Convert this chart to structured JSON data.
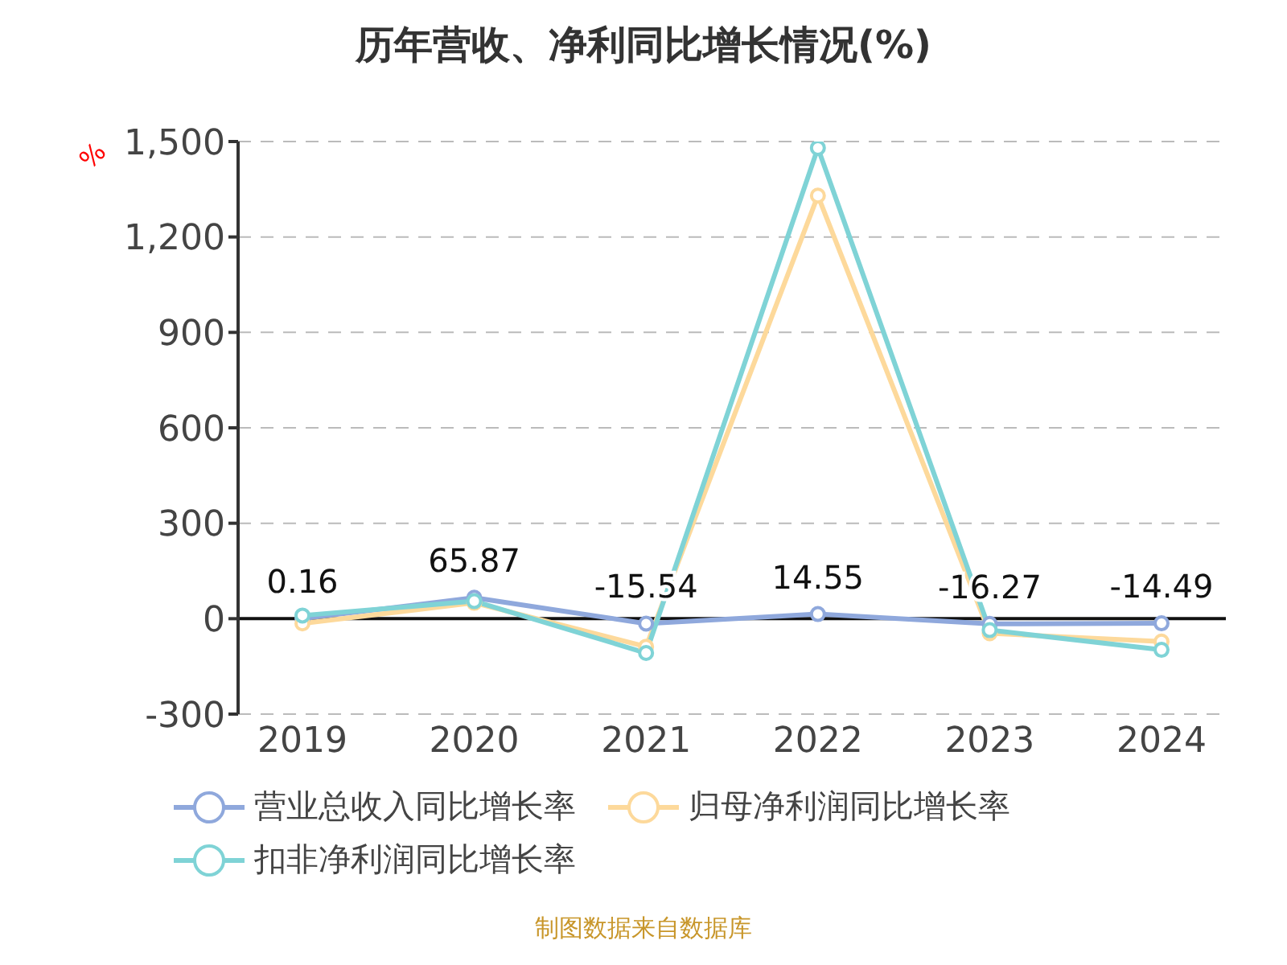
{
  "chart_data": {
    "type": "line",
    "title": "历年营收、净利同比增长情况(%)",
    "ylabel": "%",
    "categories": [
      "2019",
      "2020",
      "2021",
      "2022",
      "2023",
      "2024"
    ],
    "series": [
      {
        "name": "营业总收入同比增长率",
        "color": "#8fa8dc",
        "values": [
          0.16,
          65.87,
          -15.54,
          14.55,
          -16.27,
          -14.49
        ],
        "value_labels": [
          "0.16",
          "65.87",
          "-15.54",
          "14.55",
          "-16.27",
          "-14.49"
        ]
      },
      {
        "name": "归母净利润同比增长率",
        "color": "#fdd99b",
        "values": [
          -15,
          50,
          -88,
          1330,
          -46,
          -72
        ]
      },
      {
        "name": "扣非净利润同比增长率",
        "color": "#7fd3d6",
        "values": [
          10,
          55,
          -108,
          1480,
          -36,
          -98
        ]
      }
    ],
    "ylim": [
      -300,
      1500
    ],
    "yticks": [
      -300,
      0,
      300,
      600,
      900,
      {
        "value": 1200,
        "label": "1,200"
      },
      {
        "value": 1500,
        "label": "1,500"
      }
    ],
    "grid": "y",
    "legend": "bottom",
    "marker": "circle",
    "line_style": "solid",
    "annotations": [
      "制图数据来自数据库"
    ]
  }
}
